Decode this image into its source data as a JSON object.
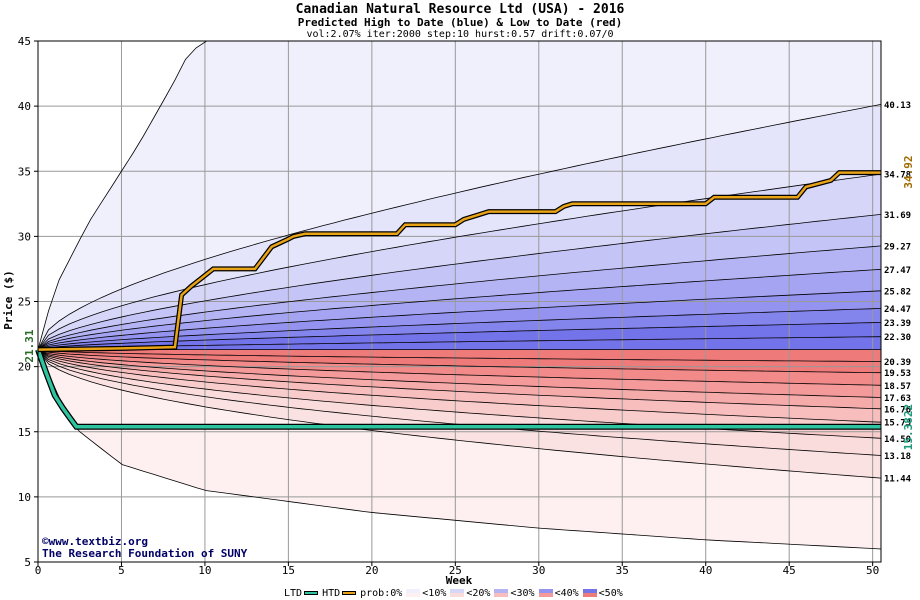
{
  "header": {
    "title": "Canadian Natural Resource Ltd (USA) - 2016",
    "subtitle": "Predicted High to Date (blue) &  Low to Date (red)",
    "params": "vol:2.07% iter:2000 step:10 hurst:0.57 drift:0.07/0"
  },
  "watermark": {
    "line1": "©www.textbiz.org",
    "line2": "The Research Foundation of SUNY"
  },
  "chart_data": {
    "type": "area",
    "xlabel": "Week",
    "ylabel": "Price ($)",
    "xlim": [
      0,
      50.5
    ],
    "ylim": [
      5,
      45
    ],
    "xticks": [
      0,
      5,
      10,
      15,
      20,
      25,
      30,
      35,
      40,
      45,
      50
    ],
    "yticks": [
      5,
      10,
      15,
      20,
      25,
      30,
      35,
      40,
      45
    ],
    "grid": true,
    "start_price": "21.31",
    "htd_final_label": "34.92",
    "ltd_final_label": "15.3822",
    "colors": {
      "htd": "#e8a317",
      "ltd": "#2ec4a0",
      "start_label": "#2a6e2a",
      "htd_label": "#a06a00",
      "ltd_label": "#1a9a7a"
    },
    "percentile_end_labels": [
      "40.13",
      "34.78",
      "31.69",
      "29.27",
      "27.47",
      "25.82",
      "24.47",
      "23.39",
      "22.30",
      "20.39",
      "19.53",
      "18.57",
      "17.63",
      "16.76",
      "15.73",
      "14.50",
      "13.18",
      "11.44"
    ],
    "high_band_levels": [
      {
        "k": 1.82,
        "end": 40.13
      },
      {
        "k": 1.32,
        "end": 34.78
      },
      {
        "k": 0.96,
        "end": 31.69
      },
      {
        "k": 0.74,
        "end": 29.27
      },
      {
        "k": 0.57,
        "end": 27.47
      },
      {
        "k": 0.42,
        "end": 25.82
      },
      {
        "k": 0.29,
        "end": 24.47
      },
      {
        "k": 0.18,
        "end": 23.39
      },
      {
        "k": 0.07,
        "end": 22.3
      }
    ],
    "high_outer_curve": {
      "x": [
        0,
        1,
        3,
        6,
        8,
        9,
        10
      ],
      "y": [
        21.31,
        26,
        31,
        37,
        41.5,
        44,
        45
      ]
    },
    "low_band_levels": [
      {
        "end": 20.39
      },
      {
        "end": 19.53
      },
      {
        "end": 18.57
      },
      {
        "end": 17.63
      },
      {
        "end": 16.76
      },
      {
        "end": 15.73
      },
      {
        "end": 14.5
      },
      {
        "end": 13.18
      },
      {
        "end": 11.44
      }
    ],
    "low_outer_curve": {
      "x": [
        0,
        2,
        5,
        10,
        20,
        30,
        40,
        50.5
      ],
      "y": [
        21.31,
        15.5,
        12.5,
        10.5,
        8.8,
        7.6,
        6.7,
        6.0
      ]
    },
    "high_to_date": {
      "x": [
        0,
        5,
        8.2,
        8.6,
        9.2,
        9.8,
        10.5,
        13,
        14,
        15,
        15.3,
        16,
        17,
        21.5,
        22,
        25,
        25.5,
        26.5,
        27,
        31,
        31.5,
        32,
        33,
        36,
        40,
        40.5,
        45.5,
        46,
        47.5,
        48,
        50.5
      ],
      "y": [
        21.31,
        21.4,
        21.5,
        25.5,
        26.2,
        26.8,
        27.5,
        27.5,
        29.2,
        29.8,
        30.0,
        30.2,
        30.2,
        30.2,
        30.9,
        30.9,
        31.3,
        31.7,
        31.9,
        31.9,
        32.3,
        32.5,
        32.5,
        32.5,
        32.5,
        33.0,
        33.0,
        33.8,
        34.3,
        34.9,
        34.9
      ]
    },
    "low_to_date": {
      "x": [
        0,
        0.5,
        1,
        1.5,
        2,
        2.3,
        50.5
      ],
      "y": [
        21.31,
        19.5,
        17.8,
        16.8,
        15.9,
        15.38,
        15.38
      ]
    },
    "legend": {
      "ltd": "LTD",
      "htd": "HTD",
      "prob_prefix": "prob:0%",
      "bins": [
        "<10%",
        "<20%",
        "<30%",
        "<40%",
        "<50%"
      ],
      "blue_swatches": [
        "#f0f0fd",
        "#d6d6f9",
        "#b4b4f4",
        "#9494f0",
        "#7474ea"
      ],
      "red_swatches": [
        "#fdf0f0",
        "#fbdcdc",
        "#f8bdbd",
        "#f49a9a",
        "#ef7a7a"
      ]
    }
  }
}
